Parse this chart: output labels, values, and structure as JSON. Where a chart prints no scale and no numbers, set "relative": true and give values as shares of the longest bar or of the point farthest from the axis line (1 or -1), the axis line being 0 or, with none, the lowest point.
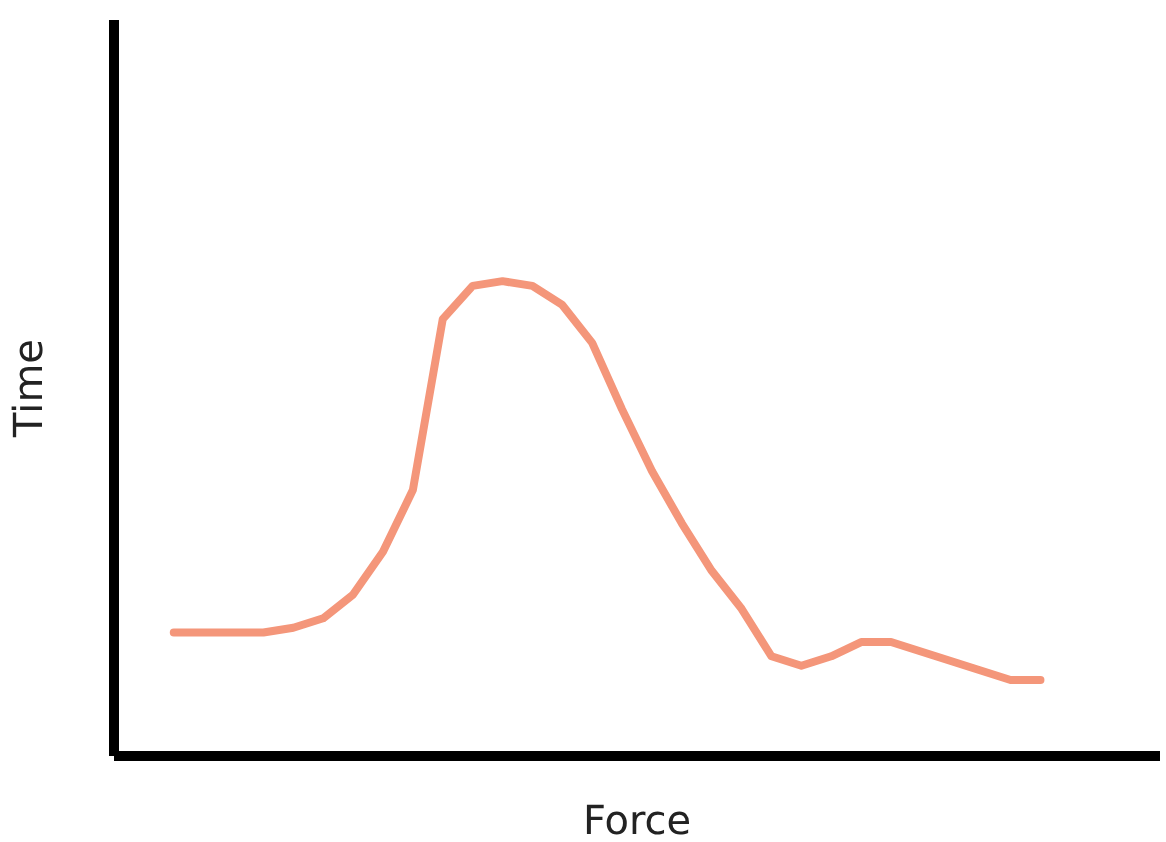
{
  "chart_data": {
    "type": "line",
    "relative": true,
    "xlabel": "Force",
    "ylabel": "Time",
    "categories": [
      null,
      null,
      null,
      null,
      null,
      null,
      null,
      null,
      null,
      null,
      null,
      null,
      null,
      null,
      null,
      null,
      null,
      null,
      null,
      null,
      null,
      null,
      null,
      null,
      null,
      null,
      null,
      null,
      null,
      null,
      null,
      null,
      null,
      null,
      null,
      null
    ],
    "series": [
      {
        "color": "#f4967a",
        "values": [
          null,
          null,
          0.26,
          0.26,
          0.26,
          0.26,
          0.27,
          0.29,
          0.34,
          0.43,
          0.56,
          0.92,
          0.99,
          1,
          0.99,
          0.95,
          0.87,
          0.73,
          0.6,
          0.49,
          0.39,
          0.31,
          0.21,
          0.19,
          0.21,
          0.24,
          0.24,
          0.22,
          0.2,
          0.18,
          0.16,
          0.16,
          null,
          null,
          null,
          null
        ]
      }
    ]
  }
}
